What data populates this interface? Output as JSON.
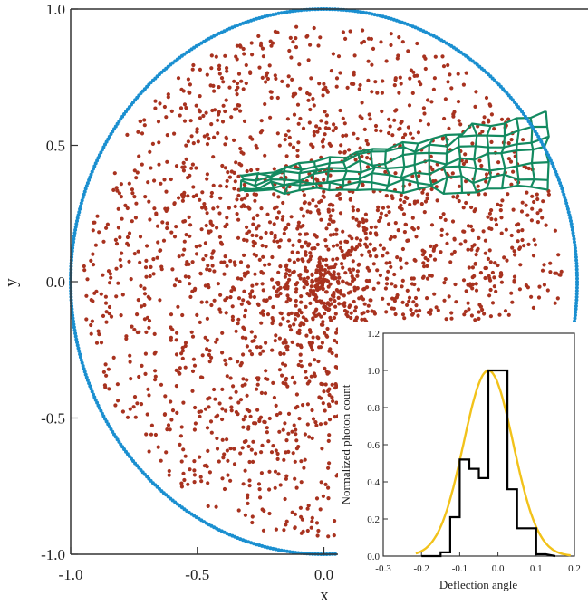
{
  "chart_data": [
    {
      "type": "scatter",
      "title": "",
      "xlabel": "x",
      "ylabel": "y",
      "xlim": [
        -1.0,
        0.15
      ],
      "ylim": [
        -1.0,
        1.0
      ],
      "x_ticks": [
        "-1.0",
        "-0.5",
        "0.0"
      ],
      "y_ticks": [
        "-1.0",
        "-0.5",
        "0.0",
        "0.5",
        "1.0"
      ],
      "grid": false,
      "series": [
        {
          "description_none": true,
          "marker": "dot",
          "color": "#a8321f",
          "distribution": {
            "center": [
              0.0,
              0.0
            ],
            "radius": 0.95,
            "count": 2600,
            "denser_near_center": true
          }
        },
        {
          "marker": "dot",
          "color": "#1a8fd0",
          "boundary_circle": {
            "center": [
              0.0,
              0.0
            ],
            "radius": 1.0
          }
        },
        {
          "marker": "mesh",
          "color": "#138a60",
          "region": {
            "x_range": [
              -0.32,
              0.88
            ],
            "y_range": [
              0.34,
              0.62
            ]
          }
        }
      ]
    },
    {
      "type": "line",
      "title": "",
      "xlabel": "Deflection angle",
      "ylabel": "Normalized photon count",
      "xlim": [
        -0.3,
        0.2
      ],
      "ylim": [
        0.0,
        1.2
      ],
      "x_ticks": [
        "-0.3",
        "-0.2",
        "-0.1",
        "0.0",
        "0.1",
        "0.2"
      ],
      "y_ticks": [
        "0.0",
        "0.2",
        "0.4",
        "0.6",
        "0.8",
        "1.0",
        "1.2"
      ],
      "series": [
        {
          "style": "histogram-step",
          "color": "#000000",
          "bin_edges": [
            -0.2,
            -0.15,
            -0.125,
            -0.1,
            -0.075,
            -0.05,
            -0.025,
            0.0,
            0.025,
            0.05,
            0.075,
            0.1,
            0.125
          ],
          "values": [
            0.0,
            0.02,
            0.21,
            0.52,
            0.47,
            0.42,
            1.0,
            1.0,
            0.36,
            0.15,
            0.15,
            0.01
          ]
        },
        {
          "style": "smooth-line",
          "color": "#f2c21a",
          "gaussian": {
            "mean": -0.025,
            "sigma": 0.065,
            "peak": 1.0
          }
        }
      ]
    }
  ]
}
